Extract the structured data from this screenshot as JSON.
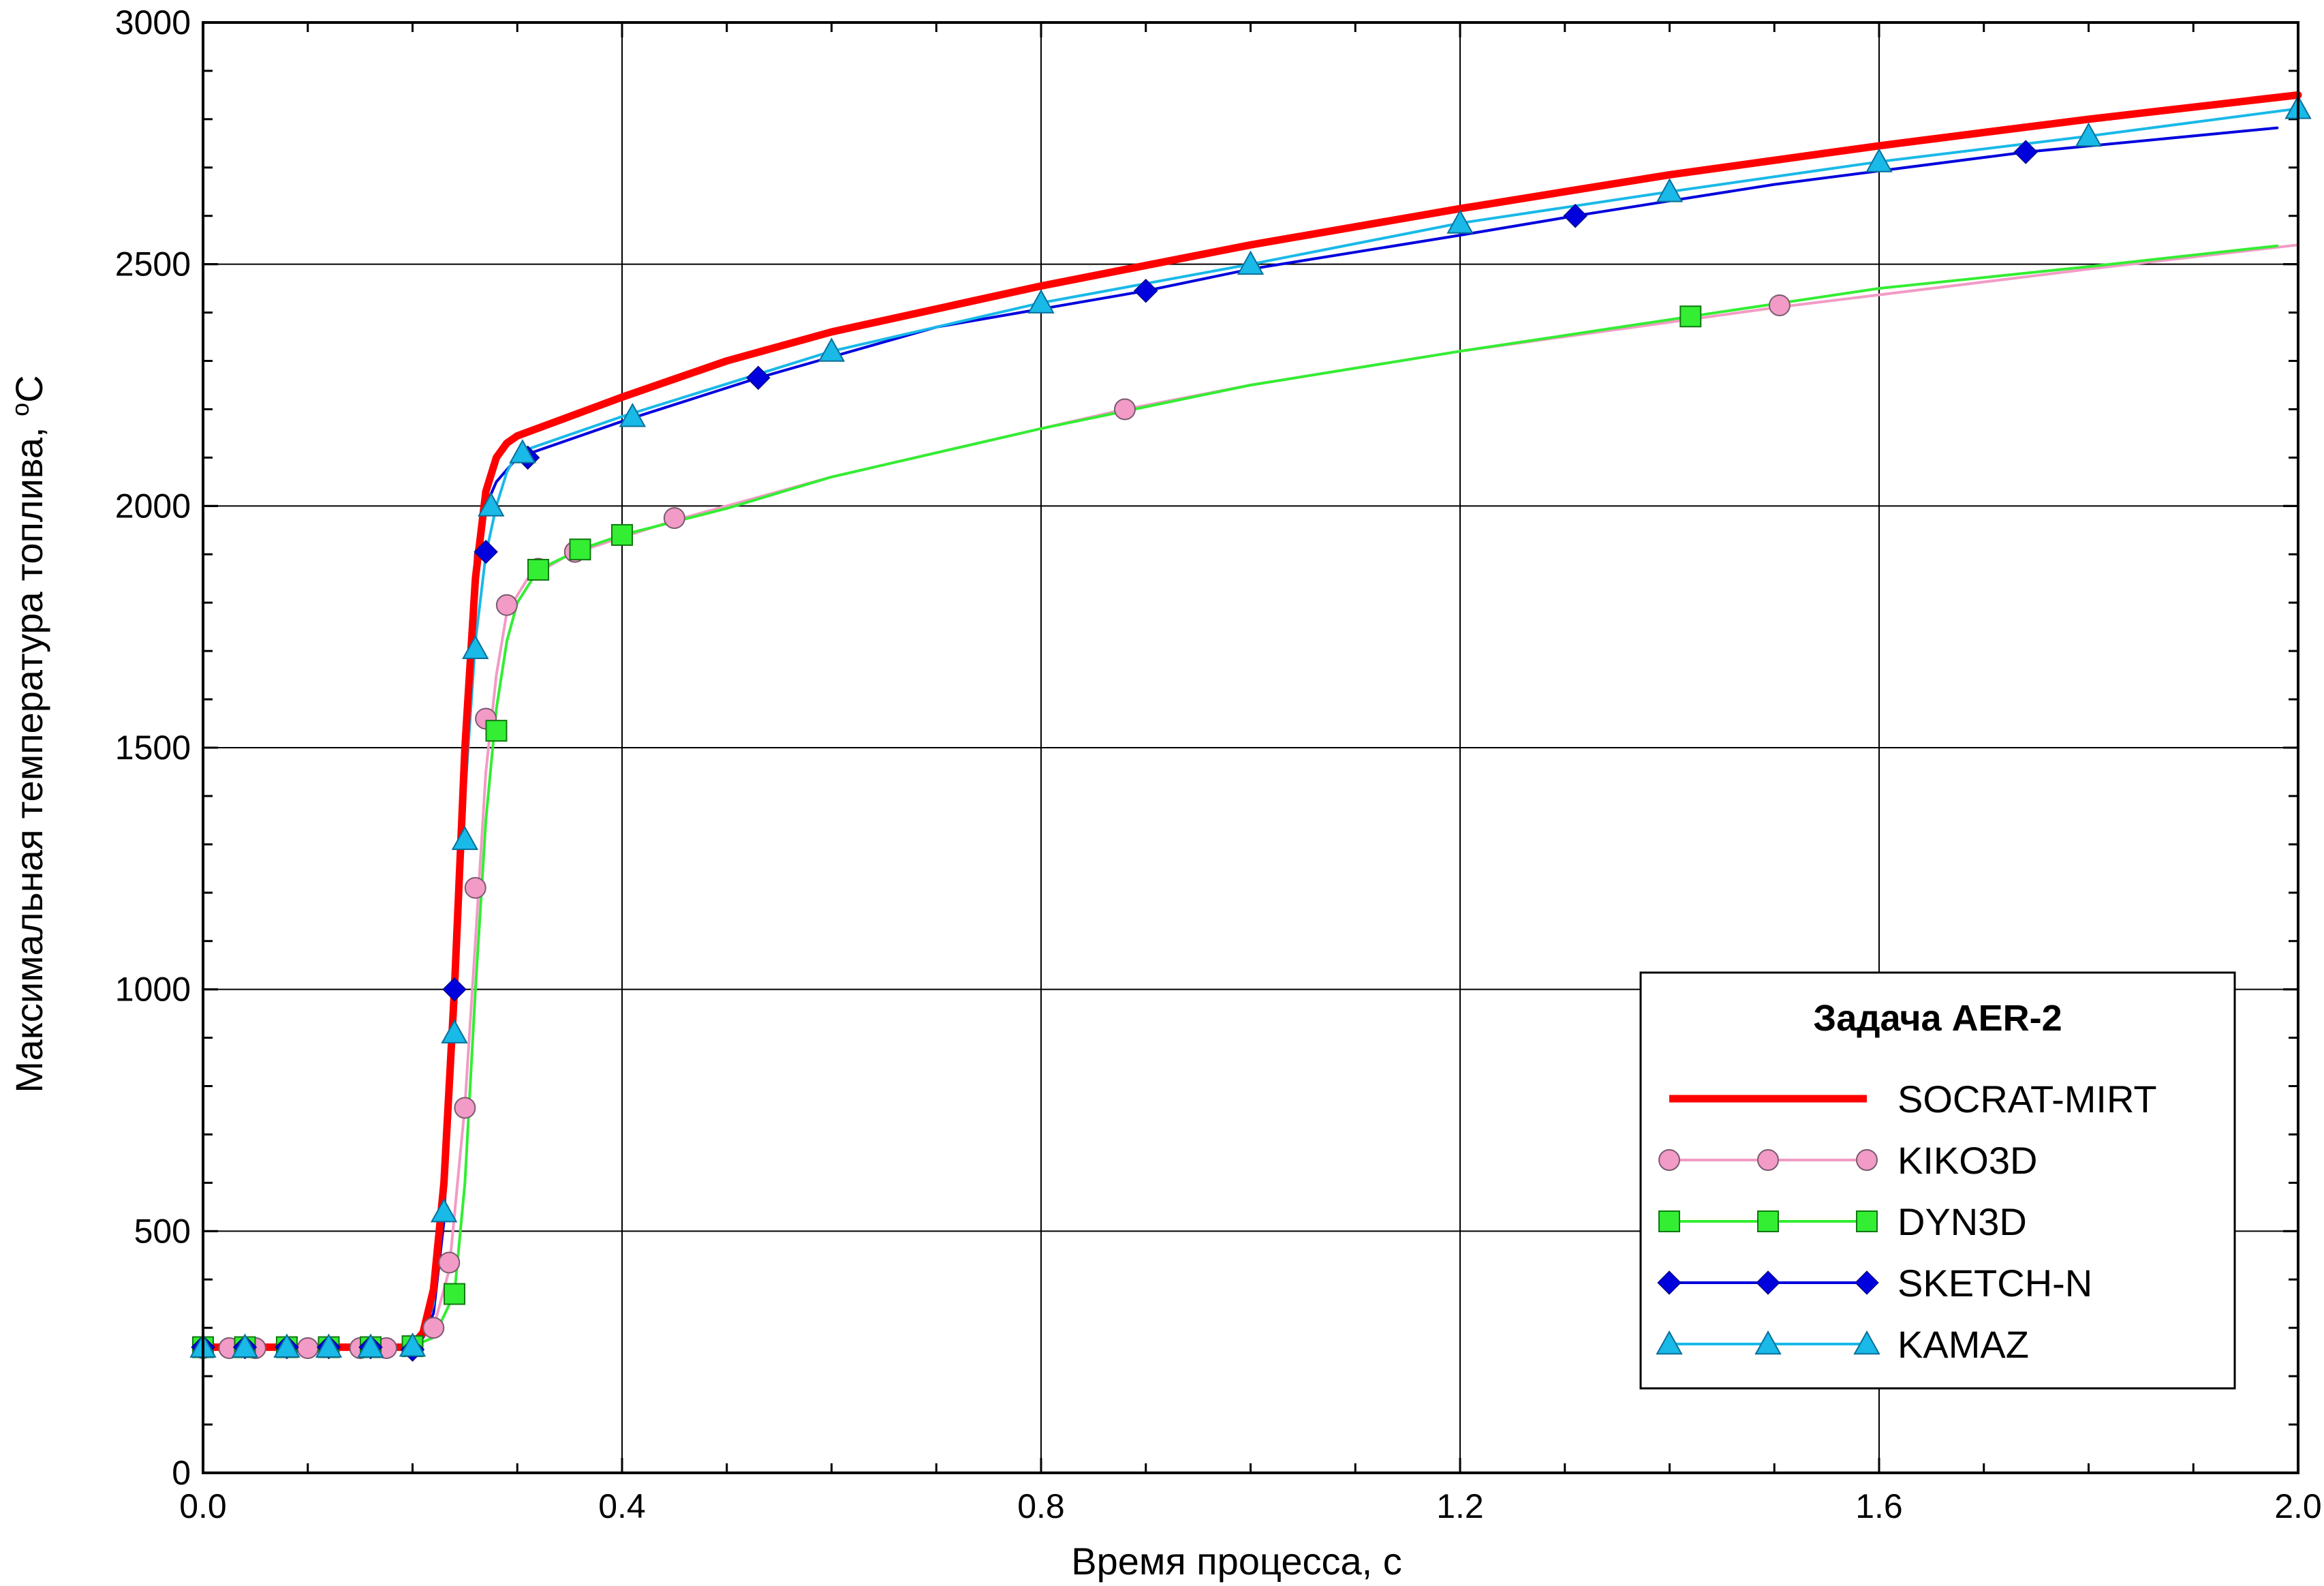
{
  "chart_data": {
    "type": "line",
    "xlabel": "Время процесса, с",
    "ylabel": "Максимальная температура топлива, ",
    "ylabel_unit_sup": "o",
    "ylabel_unit": "C",
    "xlim": [
      0,
      2.0
    ],
    "ylim": [
      0,
      3000
    ],
    "x_ticks": [
      0.0,
      0.4,
      0.8,
      1.2,
      1.6,
      2.0
    ],
    "x_tick_labels": [
      "0.0",
      "0.4",
      "0.8",
      "1.2",
      "1.6",
      "2.0"
    ],
    "y_ticks": [
      0,
      500,
      1000,
      1500,
      2000,
      2500,
      3000
    ],
    "y_tick_labels": [
      "0",
      "500",
      "1000",
      "1500",
      "2000",
      "2500",
      "3000"
    ],
    "grid": true,
    "legend": {
      "title": "Задача AER-2",
      "placement": "bottom-right"
    },
    "series": [
      {
        "name": "SOCRAT-MIRT",
        "color": "#ff0000",
        "marker": "none",
        "line": [
          [
            0,
            260
          ],
          [
            0.19,
            260
          ],
          [
            0.2,
            265
          ],
          [
            0.21,
            290
          ],
          [
            0.22,
            380
          ],
          [
            0.23,
            600
          ],
          [
            0.24,
            1000
          ],
          [
            0.25,
            1500
          ],
          [
            0.26,
            1850
          ],
          [
            0.27,
            2030
          ],
          [
            0.28,
            2100
          ],
          [
            0.29,
            2130
          ],
          [
            0.3,
            2145
          ],
          [
            0.35,
            2185
          ],
          [
            0.4,
            2225
          ],
          [
            0.5,
            2300
          ],
          [
            0.6,
            2360
          ],
          [
            0.8,
            2455
          ],
          [
            1.0,
            2540
          ],
          [
            1.2,
            2615
          ],
          [
            1.4,
            2685
          ],
          [
            1.6,
            2745
          ],
          [
            1.8,
            2800
          ],
          [
            2.0,
            2850
          ]
        ],
        "markers": []
      },
      {
        "name": "KIKO3D",
        "color": "#f29bc6",
        "marker": "circle",
        "line": [
          [
            0,
            258
          ],
          [
            0.2,
            260
          ],
          [
            0.22,
            300
          ],
          [
            0.235,
            420
          ],
          [
            0.25,
            760
          ],
          [
            0.26,
            1100
          ],
          [
            0.27,
            1450
          ],
          [
            0.28,
            1650
          ],
          [
            0.29,
            1780
          ],
          [
            0.31,
            1850
          ],
          [
            0.35,
            1900
          ],
          [
            0.4,
            1935
          ],
          [
            0.45,
            1970
          ],
          [
            0.6,
            2060
          ],
          [
            0.88,
            2200
          ],
          [
            1.0,
            2250
          ],
          [
            1.2,
            2320
          ],
          [
            1.5,
            2410
          ],
          [
            1.8,
            2490
          ],
          [
            2.0,
            2540
          ]
        ],
        "markers": [
          [
            0,
            258
          ],
          [
            0.025,
            258
          ],
          [
            0.05,
            258
          ],
          [
            0.1,
            258
          ],
          [
            0.15,
            258
          ],
          [
            0.175,
            258
          ],
          [
            0.2,
            262
          ],
          [
            0.22,
            300
          ],
          [
            0.235,
            435
          ],
          [
            0.25,
            755
          ],
          [
            0.26,
            1210
          ],
          [
            0.27,
            1560
          ],
          [
            0.29,
            1795
          ],
          [
            0.32,
            1870
          ],
          [
            0.355,
            1905
          ],
          [
            0.45,
            1975
          ],
          [
            0.88,
            2200
          ],
          [
            1.505,
            2415
          ]
        ]
      },
      {
        "name": "DYN3D",
        "color": "#33ee33",
        "marker": "square",
        "line": [
          [
            0,
            260
          ],
          [
            0.2,
            262
          ],
          [
            0.22,
            280
          ],
          [
            0.24,
            370
          ],
          [
            0.25,
            600
          ],
          [
            0.26,
            1000
          ],
          [
            0.27,
            1350
          ],
          [
            0.28,
            1580
          ],
          [
            0.29,
            1720
          ],
          [
            0.3,
            1800
          ],
          [
            0.32,
            1868
          ],
          [
            0.36,
            1910
          ],
          [
            0.4,
            1940
          ],
          [
            0.5,
            1995
          ],
          [
            0.6,
            2060
          ],
          [
            0.8,
            2160
          ],
          [
            1.0,
            2250
          ],
          [
            1.2,
            2320
          ],
          [
            1.42,
            2392
          ],
          [
            1.6,
            2450
          ],
          [
            1.8,
            2495
          ],
          [
            1.98,
            2538
          ]
        ],
        "markers": [
          [
            0,
            260
          ],
          [
            0.04,
            260
          ],
          [
            0.08,
            260
          ],
          [
            0.12,
            260
          ],
          [
            0.16,
            260
          ],
          [
            0.2,
            262
          ],
          [
            0.24,
            370
          ],
          [
            0.28,
            1535
          ],
          [
            0.32,
            1868
          ],
          [
            0.36,
            1910
          ],
          [
            0.4,
            1940
          ],
          [
            1.42,
            2392
          ]
        ]
      },
      {
        "name": "SKETCH-N",
        "color": "#0000dd",
        "marker": "diamond",
        "line": [
          [
            0,
            260
          ],
          [
            0.19,
            260
          ],
          [
            0.2,
            262
          ],
          [
            0.21,
            280
          ],
          [
            0.22,
            330
          ],
          [
            0.23,
            520
          ],
          [
            0.24,
            1000
          ],
          [
            0.25,
            1500
          ],
          [
            0.26,
            1900
          ],
          [
            0.27,
            2000
          ],
          [
            0.28,
            2050
          ],
          [
            0.3,
            2100
          ],
          [
            0.4,
            2175
          ],
          [
            0.53,
            2265
          ],
          [
            0.7,
            2370
          ],
          [
            0.9,
            2445
          ],
          [
            1.0,
            2490
          ],
          [
            1.2,
            2560
          ],
          [
            1.31,
            2600
          ],
          [
            1.5,
            2665
          ],
          [
            1.74,
            2732
          ],
          [
            1.98,
            2782
          ]
        ],
        "markers": [
          [
            0,
            260
          ],
          [
            0.04,
            260
          ],
          [
            0.08,
            260
          ],
          [
            0.12,
            260
          ],
          [
            0.16,
            260
          ],
          [
            0.2,
            255
          ],
          [
            0.24,
            1000
          ],
          [
            0.27,
            1905
          ],
          [
            0.31,
            2100
          ],
          [
            0.53,
            2265
          ],
          [
            0.9,
            2445
          ],
          [
            1.31,
            2600
          ],
          [
            1.74,
            2732
          ]
        ]
      },
      {
        "name": "KAMAZ",
        "color": "#19b9e8",
        "marker": "triangle",
        "line": [
          [
            0,
            260
          ],
          [
            0.19,
            260
          ],
          [
            0.2,
            262
          ],
          [
            0.21,
            285
          ],
          [
            0.22,
            350
          ],
          [
            0.23,
            560
          ],
          [
            0.24,
            1000
          ],
          [
            0.25,
            1400
          ],
          [
            0.26,
            1720
          ],
          [
            0.27,
            1900
          ],
          [
            0.28,
            2000
          ],
          [
            0.29,
            2070
          ],
          [
            0.3,
            2110
          ],
          [
            0.4,
            2185
          ],
          [
            0.6,
            2320
          ],
          [
            0.8,
            2420
          ],
          [
            1.0,
            2500
          ],
          [
            1.2,
            2585
          ],
          [
            1.4,
            2650
          ],
          [
            1.6,
            2712
          ],
          [
            1.8,
            2765
          ],
          [
            2.0,
            2822
          ]
        ],
        "markers": [
          [
            0,
            260
          ],
          [
            0.04,
            260
          ],
          [
            0.08,
            260
          ],
          [
            0.12,
            260
          ],
          [
            0.16,
            260
          ],
          [
            0.2,
            262
          ],
          [
            0.23,
            540
          ],
          [
            0.24,
            910
          ],
          [
            0.25,
            1310
          ],
          [
            0.26,
            1705
          ],
          [
            0.275,
            2000
          ],
          [
            0.305,
            2110
          ],
          [
            0.41,
            2185
          ],
          [
            0.6,
            2320
          ],
          [
            0.8,
            2420
          ],
          [
            1.0,
            2500
          ],
          [
            1.2,
            2585
          ],
          [
            1.4,
            2650
          ],
          [
            1.6,
            2712
          ],
          [
            1.8,
            2765
          ],
          [
            2.0,
            2822
          ]
        ]
      }
    ]
  }
}
